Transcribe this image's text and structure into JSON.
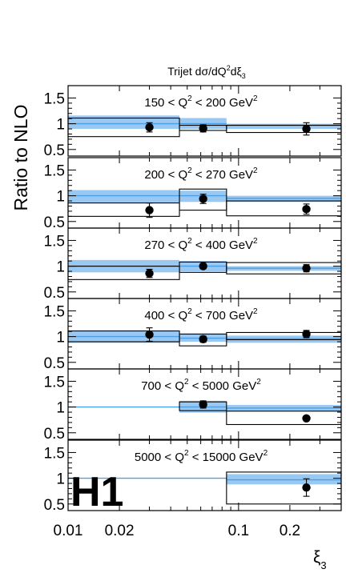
{
  "chart_data": {
    "type": "scatter",
    "title": "Trijet dσ/dQ²dξ₃",
    "title_parts": {
      "main": "Trijet dσ/dQ",
      "sup": "2",
      "mid": "dξ",
      "sub": "3"
    },
    "ylabel": "Ratio to NLO",
    "xlabel": {
      "main": "ξ",
      "sub": "3"
    },
    "logo": "H1",
    "x_scale": "log",
    "xlim": [
      0.01,
      0.4
    ],
    "ylim": [
      0.45,
      1.6
    ],
    "x_ticks": [
      {
        "value": 0.01,
        "label": "0.01"
      },
      {
        "value": 0.02,
        "label": "0.02"
      },
      {
        "value": 0.1,
        "label": "0.1"
      },
      {
        "value": 0.2,
        "label": "0.2"
      }
    ],
    "y_ticks": [
      {
        "value": 0.5,
        "label": "0.5"
      },
      {
        "value": 1,
        "label": "1"
      },
      {
        "value": 1.5,
        "label": "1.5"
      }
    ],
    "colors": {
      "nlo_band": "#99c9f2",
      "nlo_line": "#4a9fe6",
      "data": "#000000"
    },
    "panels": [
      {
        "label": {
          "pre": "150 < Q",
          "sup": "2",
          "post": " < 200 GeV",
          "sup2": "2"
        },
        "bins": [
          {
            "xlo": 0.01,
            "xhi": 0.045,
            "hadr_lo": 0.75,
            "hadr_hi": 1.11,
            "nlo_lo": 0.9,
            "nlo_hi": 1.16,
            "nlo": 1.0
          },
          {
            "xlo": 0.045,
            "xhi": 0.085,
            "hadr_lo": 0.87,
            "hadr_hi": 0.97,
            "nlo_lo": 0.9,
            "nlo_hi": 1.11,
            "nlo": 1.0
          },
          {
            "xlo": 0.085,
            "xhi": 0.4,
            "hadr_lo": 0.83,
            "hadr_hi": 0.97,
            "nlo_lo": 0.9,
            "nlo_hi": 1.0,
            "nlo": 0.97
          }
        ],
        "points": [
          {
            "x": 0.03,
            "y": 0.93,
            "err_lo": 0.09,
            "err_hi": 0.09
          },
          {
            "x": 0.062,
            "y": 0.91,
            "err_lo": 0.07,
            "err_hi": 0.07
          },
          {
            "x": 0.25,
            "y": 0.9,
            "err_lo": 0.12,
            "err_hi": 0.12
          }
        ]
      },
      {
        "label": {
          "pre": "200 < Q",
          "sup": "2",
          "post": " < 270 GeV",
          "sup2": "2"
        },
        "bins": [
          {
            "xlo": 0.01,
            "xhi": 0.045,
            "hadr_lo": 0.6,
            "hadr_hi": 0.86,
            "nlo_lo": 0.87,
            "nlo_hi": 1.11,
            "nlo": 1.0
          },
          {
            "xlo": 0.045,
            "xhi": 0.085,
            "hadr_lo": 0.72,
            "hadr_hi": 1.13,
            "nlo_lo": 0.88,
            "nlo_hi": 1.1,
            "nlo": 1.0
          },
          {
            "xlo": 0.085,
            "xhi": 0.4,
            "hadr_lo": 0.61,
            "hadr_hi": 0.9,
            "nlo_lo": 0.88,
            "nlo_hi": 1.0,
            "nlo": 0.95
          }
        ],
        "points": [
          {
            "x": 0.03,
            "y": 0.72,
            "err_lo": 0.14,
            "err_hi": 0.14
          },
          {
            "x": 0.062,
            "y": 0.94,
            "err_lo": 0.09,
            "err_hi": 0.09
          },
          {
            "x": 0.25,
            "y": 0.74,
            "err_lo": 0.1,
            "err_hi": 0.1
          }
        ]
      },
      {
        "label": {
          "pre": "270 < Q",
          "sup": "2",
          "post": " < 400 GeV",
          "sup2": "2"
        },
        "bins": [
          {
            "xlo": 0.01,
            "xhi": 0.045,
            "hadr_lo": 0.74,
            "hadr_hi": 1.0,
            "nlo_lo": 0.88,
            "nlo_hi": 1.12,
            "nlo": 1.0
          },
          {
            "xlo": 0.045,
            "xhi": 0.085,
            "hadr_lo": 0.88,
            "hadr_hi": 1.08,
            "nlo_lo": 0.9,
            "nlo_hi": 1.1,
            "nlo": 1.0
          },
          {
            "xlo": 0.085,
            "xhi": 0.4,
            "hadr_lo": 0.85,
            "hadr_hi": 1.07,
            "nlo_lo": 0.91,
            "nlo_hi": 1.0,
            "nlo": 0.96
          }
        ],
        "points": [
          {
            "x": 0.03,
            "y": 0.86,
            "err_lo": 0.08,
            "err_hi": 0.08
          },
          {
            "x": 0.062,
            "y": 1.0,
            "err_lo": 0.05,
            "err_hi": 0.05
          },
          {
            "x": 0.25,
            "y": 0.96,
            "err_lo": 0.07,
            "err_hi": 0.07
          }
        ]
      },
      {
        "label": {
          "pre": "400 < Q",
          "sup": "2",
          "post": " < 700 GeV",
          "sup2": "2"
        },
        "bins": [
          {
            "xlo": 0.01,
            "xhi": 0.045,
            "hadr_lo": 0.9,
            "hadr_hi": 1.11,
            "nlo_lo": 0.88,
            "nlo_hi": 1.12,
            "nlo": 1.0
          },
          {
            "xlo": 0.045,
            "xhi": 0.085,
            "hadr_lo": 0.82,
            "hadr_hi": 1.05,
            "nlo_lo": 0.9,
            "nlo_hi": 1.05,
            "nlo": 0.97
          },
          {
            "xlo": 0.085,
            "xhi": 0.4,
            "hadr_lo": 0.94,
            "hadr_hi": 1.08,
            "nlo_lo": 0.88,
            "nlo_hi": 1.02,
            "nlo": 0.96
          }
        ],
        "points": [
          {
            "x": 0.03,
            "y": 1.04,
            "err_lo": 0.13,
            "err_hi": 0.13
          },
          {
            "x": 0.062,
            "y": 0.95,
            "err_lo": 0.06,
            "err_hi": 0.06
          },
          {
            "x": 0.25,
            "y": 1.05,
            "err_lo": 0.07,
            "err_hi": 0.07
          }
        ]
      },
      {
        "label": {
          "pre": "700 < Q",
          "sup": "2",
          "post": " < 5000 GeV",
          "sup2": "2"
        },
        "bins": [
          {
            "xlo": 0.01,
            "xhi": 0.045,
            "hadr_lo": null,
            "hadr_hi": null,
            "nlo_lo": null,
            "nlo_hi": null,
            "nlo": 1.0
          },
          {
            "xlo": 0.045,
            "xhi": 0.085,
            "hadr_lo": 0.93,
            "hadr_hi": 1.1,
            "nlo_lo": 0.89,
            "nlo_hi": 1.12,
            "nlo": 1.0
          },
          {
            "xlo": 0.085,
            "xhi": 0.4,
            "hadr_lo": 0.66,
            "hadr_hi": 0.92,
            "nlo_lo": 0.92,
            "nlo_hi": 1.04,
            "nlo": 0.98
          }
        ],
        "points": [
          {
            "x": 0.062,
            "y": 1.05,
            "err_lo": 0.07,
            "err_hi": 0.07
          },
          {
            "x": 0.25,
            "y": 0.78,
            "err_lo": 0.04,
            "err_hi": 0.04
          }
        ]
      },
      {
        "label": {
          "pre": "5000 < Q",
          "sup": "2",
          "post": " < 15000 GeV",
          "sup2": "2"
        },
        "bins": [
          {
            "xlo": 0.01,
            "xhi": 0.085,
            "hadr_lo": null,
            "hadr_hi": null,
            "nlo_lo": null,
            "nlo_hi": null,
            "nlo": 1.0
          },
          {
            "xlo": 0.085,
            "xhi": 0.4,
            "hadr_lo": 0.5,
            "hadr_hi": 1.12,
            "nlo_lo": 0.88,
            "nlo_hi": 1.08,
            "nlo": 0.97
          }
        ],
        "points": [
          {
            "x": 0.25,
            "y": 0.82,
            "err_lo": 0.17,
            "err_hi": 0.17
          }
        ]
      }
    ]
  }
}
